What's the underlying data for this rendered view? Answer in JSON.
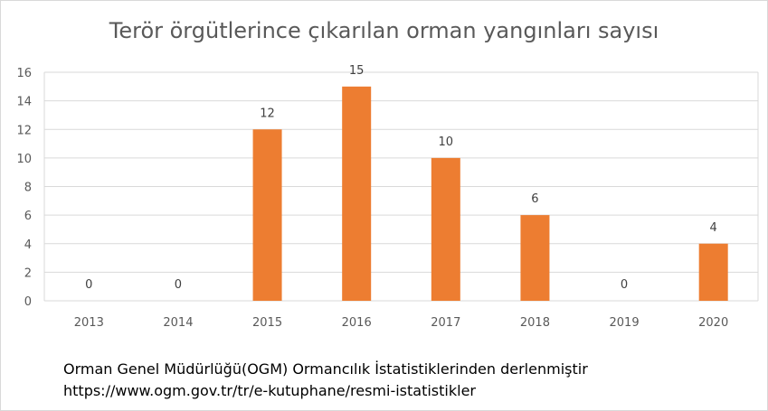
{
  "chart_data": {
    "type": "bar",
    "title": "Terör örgütlerince çıkarılan orman yangınları sayısı",
    "categories": [
      "2013",
      "2014",
      "2015",
      "2016",
      "2017",
      "2018",
      "2019",
      "2020"
    ],
    "values": [
      0,
      0,
      12,
      15,
      10,
      6,
      0,
      4
    ],
    "data_labels": [
      "0",
      "0",
      "12",
      "15",
      "10",
      "6",
      "0",
      "4"
    ],
    "xlabel": "",
    "ylabel": "",
    "ylim": [
      0,
      16
    ],
    "yticks": [
      "0",
      "2",
      "4",
      "6",
      "8",
      "10",
      "12",
      "14",
      "16"
    ],
    "grid": true,
    "bar_color": "#ed7d31"
  },
  "source": {
    "line1": "Orman Genel Müdürlüğü(OGM) Ormancılık İstatistiklerinden derlenmiştir",
    "line2": "https://www.ogm.gov.tr/tr/e-kutuphane/resmi-istatistikler"
  }
}
